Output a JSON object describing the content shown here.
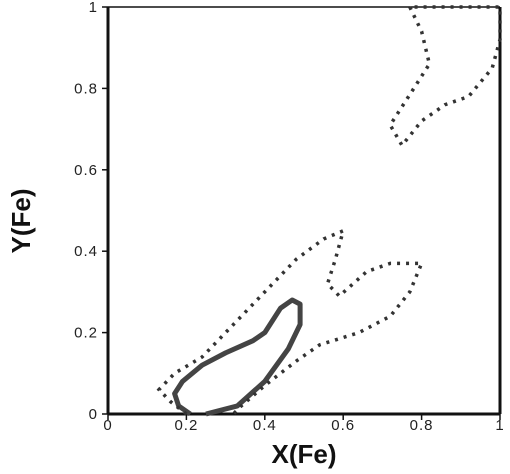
{
  "chart_data": {
    "type": "line",
    "xlabel": "X(Fe)",
    "ylabel": "Y(Fe)",
    "xlim": [
      0,
      1
    ],
    "ylim": [
      0,
      1
    ],
    "x_ticks": [
      {
        "value": 0,
        "label": "0"
      },
      {
        "value": 0.2,
        "label": "0.2"
      },
      {
        "value": 0.4,
        "label": "0.4"
      },
      {
        "value": 0.6,
        "label": "0.6"
      },
      {
        "value": 0.8,
        "label": "0.8"
      },
      {
        "value": 1,
        "label": "1"
      }
    ],
    "y_ticks": [
      {
        "value": 0,
        "label": "0"
      },
      {
        "value": 0.2,
        "label": "0.2"
      },
      {
        "value": 0.4,
        "label": "0.4"
      },
      {
        "value": 0.6,
        "label": "0.6"
      },
      {
        "value": 0.8,
        "label": "0.8"
      },
      {
        "value": 1,
        "label": "1"
      }
    ],
    "grid": false,
    "series": [
      {
        "style": "solid",
        "points": [
          [
            0.25,
            0.0
          ],
          [
            0.33,
            0.02
          ],
          [
            0.4,
            0.08
          ],
          [
            0.46,
            0.16
          ],
          [
            0.49,
            0.22
          ],
          [
            0.49,
            0.27
          ],
          [
            0.47,
            0.28
          ],
          [
            0.44,
            0.26
          ],
          [
            0.4,
            0.2
          ],
          [
            0.37,
            0.18
          ],
          [
            0.3,
            0.15
          ],
          [
            0.24,
            0.12
          ],
          [
            0.19,
            0.08
          ],
          [
            0.17,
            0.05
          ],
          [
            0.18,
            0.02
          ],
          [
            0.21,
            0.0
          ]
        ]
      },
      {
        "style": "dotted",
        "points": [
          [
            0.2,
            0.0
          ],
          [
            0.16,
            0.03
          ],
          [
            0.13,
            0.06
          ],
          [
            0.17,
            0.1
          ],
          [
            0.24,
            0.14
          ],
          [
            0.3,
            0.2
          ],
          [
            0.36,
            0.26
          ],
          [
            0.42,
            0.32
          ],
          [
            0.48,
            0.38
          ],
          [
            0.55,
            0.43
          ],
          [
            0.6,
            0.45
          ],
          [
            0.58,
            0.38
          ],
          [
            0.56,
            0.32
          ],
          [
            0.59,
            0.29
          ],
          [
            0.66,
            0.35
          ],
          [
            0.72,
            0.37
          ],
          [
            0.8,
            0.37
          ],
          [
            0.77,
            0.3
          ],
          [
            0.72,
            0.24
          ],
          [
            0.64,
            0.2
          ],
          [
            0.54,
            0.17
          ],
          [
            0.48,
            0.13
          ],
          [
            0.4,
            0.07
          ],
          [
            0.34,
            0.02
          ],
          [
            0.32,
            0.0
          ]
        ]
      },
      {
        "style": "dotted",
        "points": [
          [
            0.77,
            1.0
          ],
          [
            0.8,
            0.94
          ],
          [
            0.82,
            0.86
          ],
          [
            0.78,
            0.8
          ],
          [
            0.72,
            0.71
          ],
          [
            0.75,
            0.66
          ],
          [
            0.8,
            0.72
          ],
          [
            0.86,
            0.76
          ],
          [
            0.92,
            0.78
          ],
          [
            0.98,
            0.85
          ],
          [
            1.0,
            0.92
          ],
          [
            1.0,
            1.0
          ],
          [
            0.77,
            1.0
          ]
        ]
      }
    ]
  }
}
